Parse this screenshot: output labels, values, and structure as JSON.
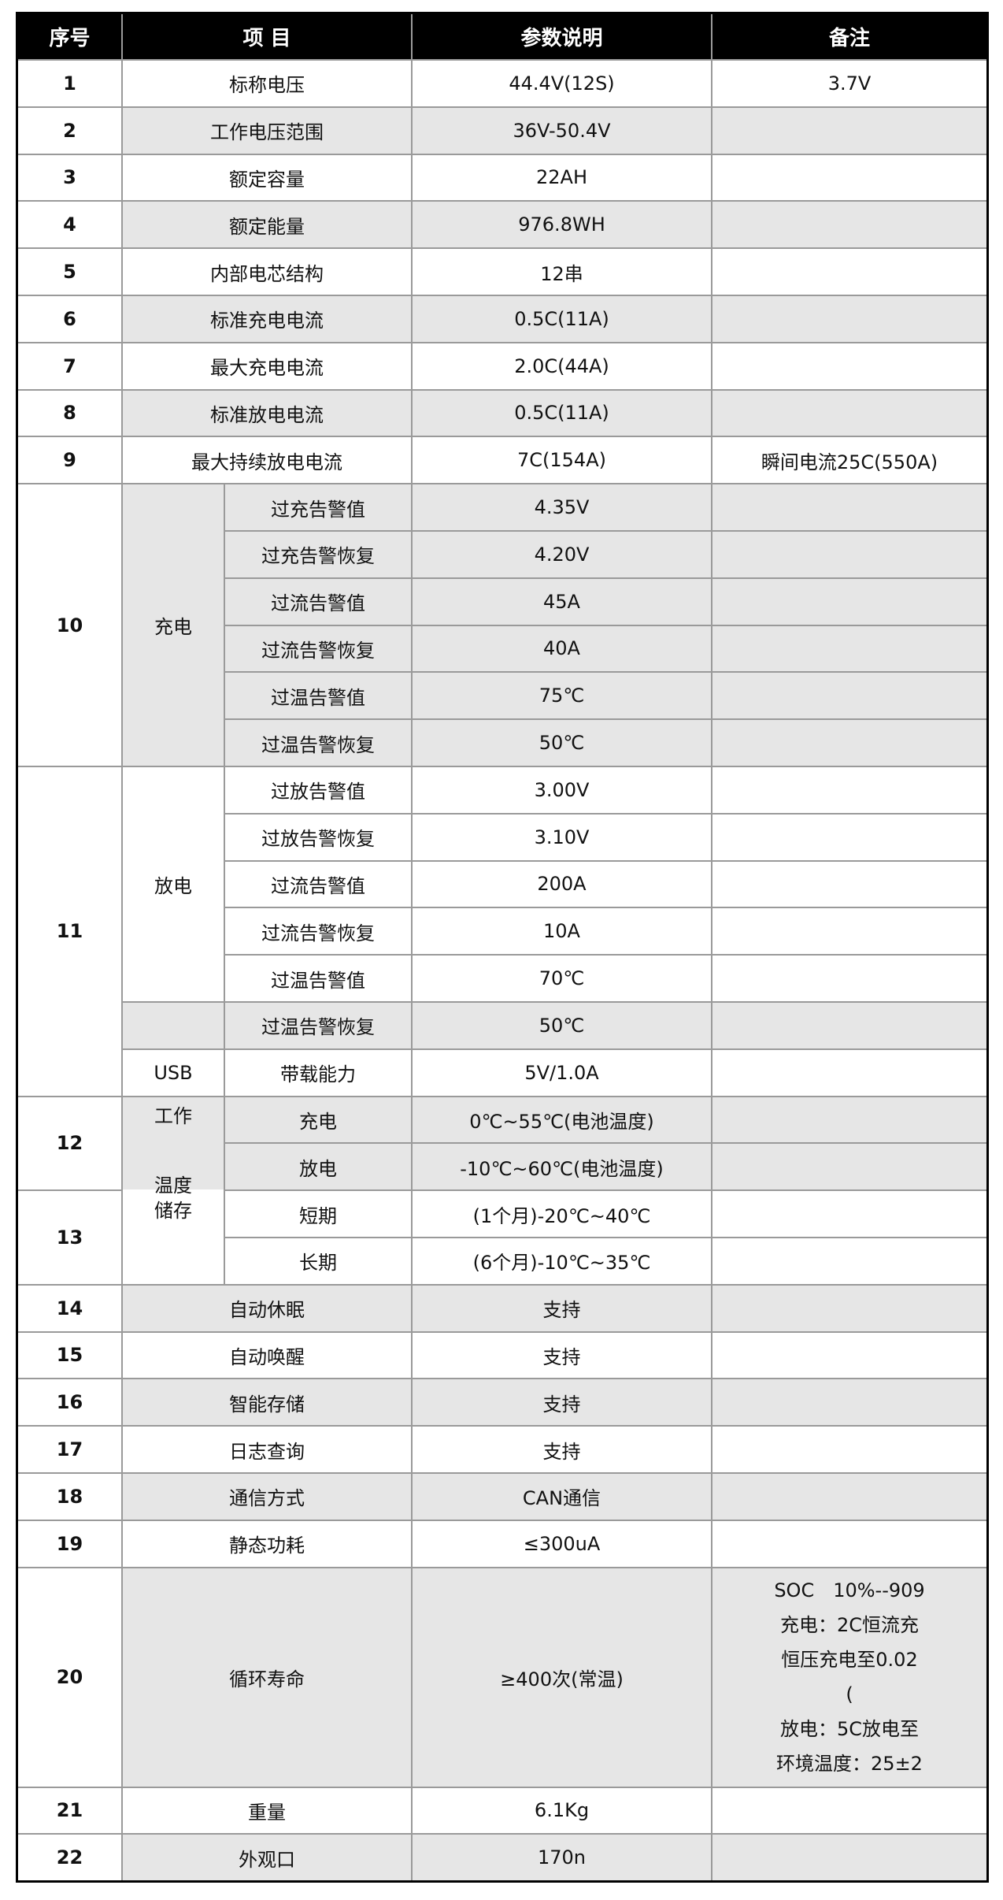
{
  "header": {
    "no": "序号",
    "item": "项 目",
    "param": "参数说明",
    "remark": "备注"
  },
  "rows": [
    {
      "no": "1",
      "item": "标称电压",
      "param": "44.4V(12S)",
      "remark": "3.7V"
    },
    {
      "no": "2",
      "item": "工作电压范围",
      "param": "36V-50.4V",
      "remark": ""
    },
    {
      "no": "3",
      "item": "额定容量",
      "param": "22AH",
      "remark": ""
    },
    {
      "no": "4",
      "item": "额定能量",
      "param": "976.8WH",
      "remark": ""
    },
    {
      "no": "5",
      "item": "内部电芯结构",
      "param": "12串",
      "remark": ""
    },
    {
      "no": "6",
      "item": "标准充电电流",
      "param": "0.5C(11A)",
      "remark": ""
    },
    {
      "no": "7",
      "item": "最大充电电流",
      "param": "2.0C(44A)",
      "remark": ""
    },
    {
      "no": "8",
      "item": "标准放电电流",
      "param": "0.5C(11A)",
      "remark": ""
    },
    {
      "no": "9",
      "item": "最大持续放电电流",
      "param": "7C(154A)",
      "remark": "瞬间电流25C(550A)"
    }
  ],
  "charge_group": {
    "no": "10",
    "label": "充电",
    "items": [
      {
        "item": "过充告警值",
        "param": "4.35V"
      },
      {
        "item": "过充告警恢复",
        "param": "4.20V"
      },
      {
        "item": "过流告警值",
        "param": "45A"
      },
      {
        "item": "过流告警恢复",
        "param": "40A"
      },
      {
        "item": "过温告警值",
        "param": "75℃"
      },
      {
        "item": "过温告警恢复",
        "param": "50℃"
      }
    ]
  },
  "discharge_group": {
    "no": "11",
    "label": "放电",
    "items": [
      {
        "item": "过放告警值",
        "param": "3.00V"
      },
      {
        "item": "过放告警恢复",
        "param": "3.10V"
      },
      {
        "item": "过流告警值",
        "param": "200A"
      },
      {
        "item": "过流告警恢复",
        "param": "10A"
      },
      {
        "item": "过温告警值",
        "param": "70℃"
      },
      {
        "item": "过温告警恢复",
        "param": "50℃"
      }
    ],
    "usb": {
      "label": "USB",
      "item": "带载能力",
      "param": "5V/1.0A"
    }
  },
  "temperature": {
    "work_no": "12",
    "storage_no": "13",
    "label_work": "工作",
    "label_temp": "温度",
    "label_storage": "储存",
    "work_items": [
      {
        "item": "充电",
        "param": "0℃~55℃(电池温度)"
      },
      {
        "item": "放电",
        "param": "-10℃~60℃(电池温度)"
      }
    ],
    "storage_items": [
      {
        "item": "短期",
        "param": "(1个月)-20℃~40℃"
      },
      {
        "item": "长期",
        "param": "(6个月)-10℃~35℃"
      }
    ]
  },
  "rows_after": [
    {
      "no": "14",
      "item": "自动休眠",
      "param": "支持",
      "remark": ""
    },
    {
      "no": "15",
      "item": "自动唤醒",
      "param": "支持",
      "remark": ""
    },
    {
      "no": "16",
      "item": "智能存储",
      "param": "支持",
      "remark": ""
    },
    {
      "no": "17",
      "item": "日志查询",
      "param": "支持",
      "remark": ""
    },
    {
      "no": "18",
      "item": "通信方式",
      "param": "CAN通信",
      "remark": ""
    },
    {
      "no": "19",
      "item": "静态功耗",
      "param": "≤300uA",
      "remark": ""
    },
    {
      "no": "20",
      "item": "循环寿命",
      "param": "≥400次(常温)",
      "remark_lines": [
        "SOC　10%--909",
        "充电：2C恒流充",
        "恒压充电至0.02",
        "(",
        "放电：5C放电至",
        "环境温度：25±2"
      ]
    },
    {
      "no": "21",
      "item": "重量",
      "param": "6.1Kg",
      "remark": ""
    },
    {
      "no": "22",
      "item": "外观口",
      "param": "170n",
      "remark": ""
    }
  ],
  "colors": {
    "header_bg": "#000000",
    "header_text": "#ffffff",
    "alt_row_bg": "#e6e6e6",
    "grid_line": "#9a9a9a"
  }
}
